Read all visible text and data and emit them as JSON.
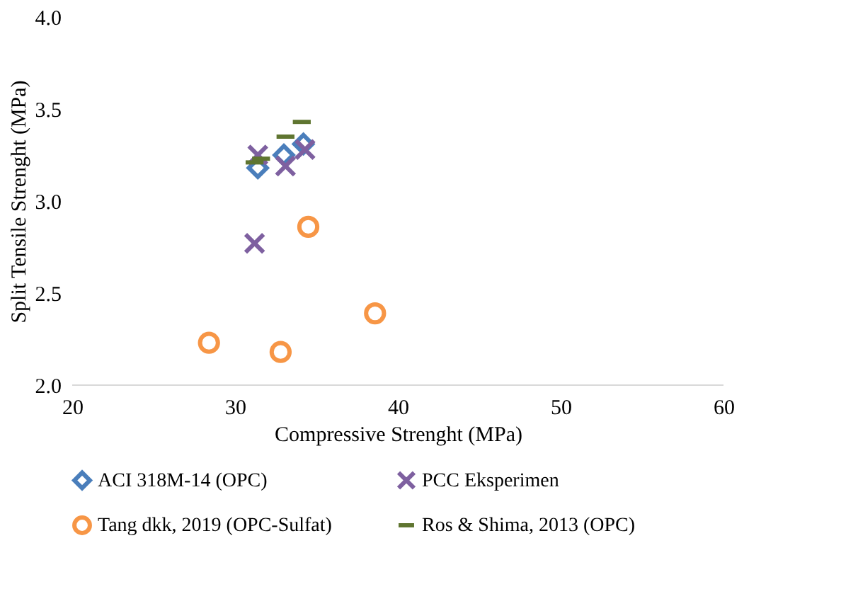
{
  "chart_data": {
    "type": "scatter",
    "xlabel": "Compressive Strenght (MPa)",
    "ylabel": "Split Tensile Strenght (MPa)",
    "xlim": [
      20,
      60
    ],
    "xticks": [
      20,
      30,
      40,
      50,
      60
    ],
    "ylim": [
      2.0,
      4.0
    ],
    "yticks": [
      {
        "value": 2.0,
        "label": "2.0"
      },
      {
        "value": 2.5,
        "label": "2.5"
      },
      {
        "value": 3.0,
        "label": "3.0"
      },
      {
        "value": 3.5,
        "label": "3.5"
      },
      {
        "value": 4.0,
        "label": "4.0"
      }
    ],
    "grid": false,
    "legend": "bottom",
    "series": [
      {
        "name": "ACI 318M-14 (OPC)",
        "color": "#4a7ebb",
        "marker": "diamond",
        "x": [
          31.4,
          33.0,
          34.2
        ],
        "values": [
          3.18,
          3.25,
          3.31
        ]
      },
      {
        "name": "PCC Eksperimen",
        "color": "#7e60a0",
        "marker": "cross",
        "x": [
          31.4,
          33.1,
          34.3,
          31.2
        ],
        "values": [
          3.25,
          3.19,
          3.28,
          2.77
        ]
      },
      {
        "name": "Tang dkk, 2019 (OPC-Sulfat)",
        "color": "#f79646",
        "marker": "circle",
        "x": [
          34.5,
          28.4,
          32.8,
          38.6
        ],
        "values": [
          2.86,
          2.23,
          2.18,
          2.39
        ]
      },
      {
        "name": "Ros & Shima, 2013 (OPC)",
        "color": "#5f7530",
        "x": [
          31.2,
          31.6,
          33.1,
          34.1
        ],
        "values": [
          3.21,
          3.23,
          3.35,
          3.43
        ]
      }
    ]
  }
}
